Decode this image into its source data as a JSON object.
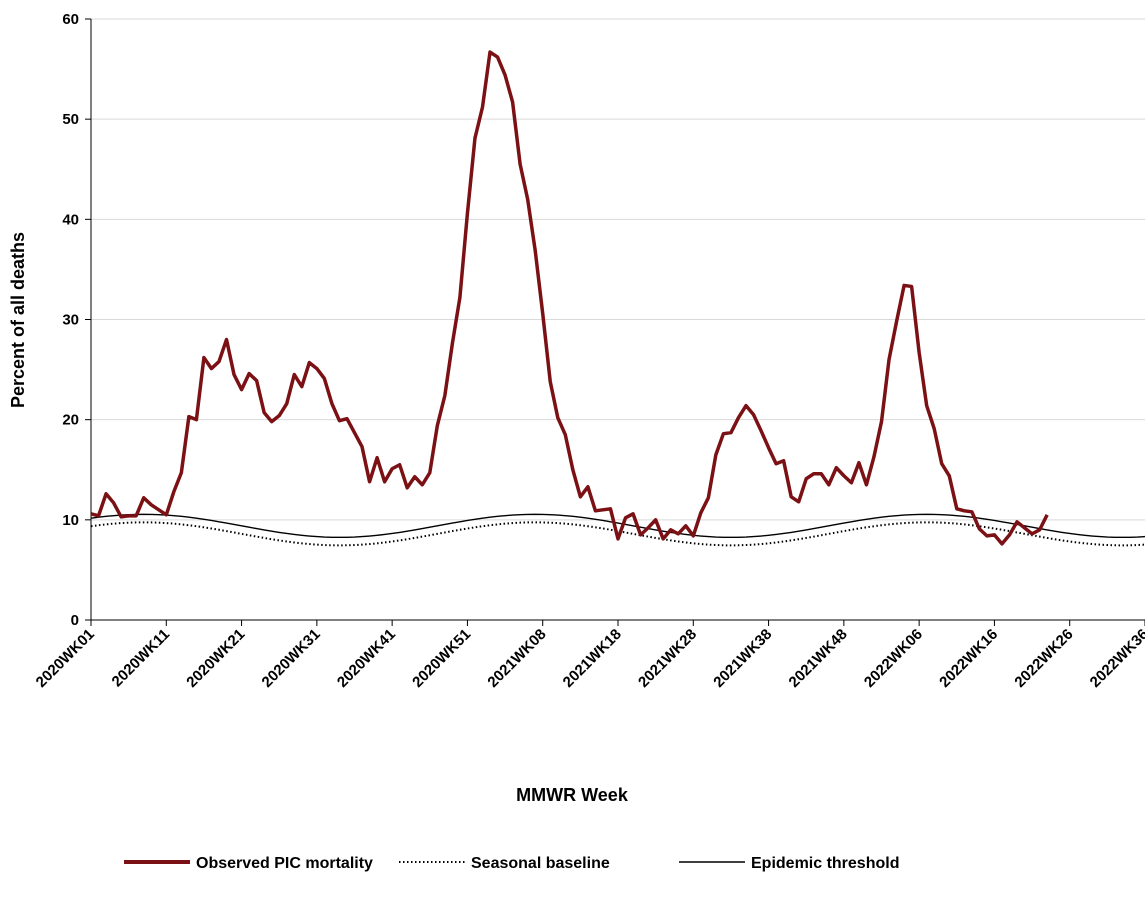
{
  "chart_data": {
    "type": "line",
    "title": "",
    "xlabel": "MMWR Week",
    "ylabel": "Percent of all deaths",
    "ylim": [
      0,
      60
    ],
    "yticks": [
      0,
      10,
      20,
      30,
      40,
      50,
      60
    ],
    "x_week_count": 141,
    "x_tick_labels": [
      "2020WK01",
      "2020WK11",
      "2020WK21",
      "2020WK31",
      "2020WK41",
      "2020WK51",
      "2021WK08",
      "2021WK18",
      "2021WK28",
      "2021WK38",
      "2021WK48",
      "2022WK06",
      "2022WK16",
      "2022WK26",
      "2022WK36"
    ],
    "x_tick_week_index": [
      0,
      10,
      20,
      30,
      40,
      50,
      60,
      70,
      80,
      90,
      100,
      110,
      120,
      130,
      140
    ],
    "grid": "horizontal",
    "legend_position": "bottom",
    "series": [
      {
        "name": "Observed PIC mortality",
        "color": "#7b1114",
        "style": "solid-thick",
        "values": [
          10.6,
          10.4,
          12.6,
          11.7,
          10.3,
          10.4,
          10.4,
          12.2,
          11.5,
          11.0,
          10.5,
          12.8,
          14.7,
          20.3,
          20.0,
          26.2,
          25.1,
          25.8,
          28.0,
          24.5,
          23.0,
          24.6,
          23.9,
          20.7,
          19.8,
          20.4,
          21.6,
          24.5,
          23.3,
          25.7,
          25.1,
          24.1,
          21.6,
          19.9,
          20.1,
          18.7,
          17.3,
          13.8,
          16.2,
          13.8,
          15.1,
          15.5,
          13.2,
          14.3,
          13.5,
          14.7,
          19.4,
          22.4,
          27.6,
          32.2,
          40.6,
          48.1,
          51.2,
          56.7,
          56.2,
          54.4,
          51.7,
          45.5,
          42.0,
          36.9,
          30.6,
          23.8,
          20.2,
          18.5,
          15.0,
          12.3,
          13.3,
          10.9,
          11.0,
          11.1,
          8.1,
          10.2,
          10.6,
          8.5,
          9.2,
          10.0,
          8.1,
          9.0,
          8.6,
          9.4,
          8.4,
          10.7,
          12.2,
          16.5,
          18.6,
          18.7,
          20.2,
          21.4,
          20.5,
          18.9,
          17.2,
          15.6,
          15.9,
          12.3,
          11.8,
          14.1,
          14.6,
          14.6,
          13.5,
          15.2,
          14.4,
          13.7,
          15.7,
          13.5,
          16.3,
          19.8,
          26.0,
          29.8,
          33.4,
          33.3,
          26.7,
          21.4,
          19.1,
          15.6,
          14.4,
          11.1,
          10.9,
          10.8,
          9.1,
          8.4,
          8.5,
          7.6,
          8.5,
          9.8,
          9.2,
          8.6,
          9.0,
          10.5
        ]
      },
      {
        "name": "Seasonal baseline",
        "color": "#000000",
        "style": "dotted",
        "curve": {
          "mean": 8.6,
          "amplitude": 1.15,
          "period_weeks": 52,
          "peak_week_index": 7
        }
      },
      {
        "name": "Epidemic threshold",
        "color": "#000000",
        "style": "solid-thin",
        "curve": {
          "mean": 9.4,
          "amplitude": 1.15,
          "period_weeks": 52,
          "peak_week_index": 7
        }
      }
    ]
  }
}
